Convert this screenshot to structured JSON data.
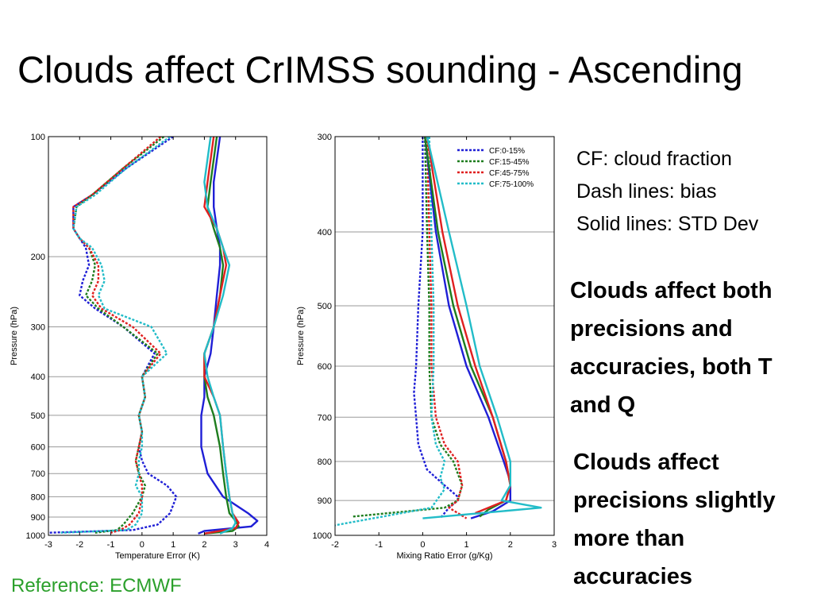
{
  "slide": {
    "title": "Clouds affect CrIMSS sounding - Ascending",
    "notes": [
      "CF: cloud fraction",
      "Dash lines: bias",
      "Solid lines: STD Dev"
    ],
    "point1": [
      "Clouds affect both",
      "precisions and",
      "accuracies, both T",
      "and Q"
    ],
    "point2": [
      "Clouds affect",
      "precisions slightly",
      "more than",
      "accuracies"
    ],
    "reference": "Reference: ECMWF",
    "reference_color": "#2ba02b"
  },
  "colors": {
    "cf_0_15": "#1f1fd6",
    "cf_15_45": "#1e7d1e",
    "cf_45_75": "#e02020",
    "cf_75_100": "#22bcc8"
  },
  "chart_data": [
    {
      "type": "line",
      "xlabel": "Temperature Error (K)",
      "ylabel": "Pressure (hPa)",
      "xlim": [
        -3,
        4
      ],
      "ylim": [
        100,
        1000
      ],
      "yscale": "log",
      "xticks": [
        -3,
        -2,
        -1,
        0,
        1,
        2,
        3,
        4
      ],
      "yticks": [
        100,
        200,
        300,
        400,
        500,
        600,
        700,
        800,
        900,
        1000
      ],
      "grid": "horizontal",
      "series": [
        {
          "kind": "bias",
          "color": "#1f1fd6",
          "x": [
            1.0,
            -0.5,
            -1.6,
            -2.2,
            -2.2,
            -2.0,
            -1.8,
            -1.7,
            -1.9,
            -2.0,
            -1.5,
            -0.6,
            0.4,
            0.0,
            0.1,
            -0.1,
            0.0,
            -0.1,
            0.0,
            0.2,
            0.8,
            1.1,
            0.9,
            0.5,
            -0.3,
            -3.0
          ],
          "y": [
            100,
            120,
            140,
            150,
            170,
            180,
            190,
            210,
            230,
            250,
            270,
            300,
            350,
            400,
            450,
            500,
            550,
            600,
            650,
            700,
            750,
            800,
            880,
            940,
            970,
            985
          ]
        },
        {
          "kind": "bias",
          "color": "#1e7d1e",
          "x": [
            0.7,
            -0.6,
            -1.6,
            -2.1,
            -2.2,
            -2.0,
            -1.7,
            -1.5,
            -1.6,
            -1.8,
            -1.4,
            -0.6,
            0.5,
            0.0,
            0.1,
            -0.1,
            0.0,
            -0.1,
            -0.2,
            -0.1,
            0.1,
            0.0,
            -0.3,
            -0.6,
            -0.8,
            -1.5
          ],
          "y": [
            100,
            120,
            140,
            150,
            170,
            180,
            190,
            210,
            230,
            250,
            270,
            300,
            350,
            400,
            450,
            500,
            550,
            600,
            650,
            700,
            750,
            800,
            880,
            940,
            970,
            985
          ]
        },
        {
          "kind": "bias",
          "color": "#e02020",
          "x": [
            0.6,
            -0.6,
            -1.6,
            -2.2,
            -2.2,
            -2.0,
            -1.7,
            -1.4,
            -1.4,
            -1.6,
            -1.3,
            -0.3,
            0.6,
            0.0,
            0.1,
            -0.1,
            0.0,
            -0.1,
            -0.2,
            -0.1,
            0.0,
            0.0,
            -0.1,
            -0.4,
            -0.7,
            -1.0
          ],
          "y": [
            100,
            120,
            140,
            150,
            170,
            180,
            190,
            210,
            230,
            250,
            270,
            300,
            350,
            400,
            450,
            500,
            550,
            600,
            650,
            700,
            750,
            800,
            880,
            940,
            970,
            985
          ]
        },
        {
          "kind": "bias",
          "color": "#22bcc8",
          "x": [
            0.9,
            -0.5,
            -1.5,
            -2.1,
            -2.2,
            -2.0,
            -1.6,
            -1.3,
            -1.2,
            -1.4,
            -1.2,
            0.3,
            0.8,
            0.0,
            0.1,
            -0.1,
            0.0,
            0.0,
            -0.1,
            -0.1,
            -0.2,
            0.0,
            0.0,
            -0.2,
            -0.5,
            -2.6
          ],
          "y": [
            100,
            120,
            140,
            150,
            170,
            180,
            190,
            210,
            230,
            250,
            270,
            300,
            350,
            400,
            450,
            500,
            550,
            600,
            650,
            700,
            750,
            800,
            880,
            940,
            970,
            985
          ]
        },
        {
          "kind": "std",
          "color": "#1f1fd6",
          "x": [
            2.5,
            2.3,
            2.3,
            2.4,
            2.5,
            2.5,
            2.4,
            2.3,
            2.2,
            2.0,
            2.0,
            1.9,
            1.9,
            1.9,
            2.1,
            2.6,
            3.4,
            3.7,
            3.5,
            2.0,
            1.8
          ],
          "y": [
            100,
            130,
            150,
            170,
            190,
            210,
            250,
            300,
            350,
            400,
            450,
            500,
            550,
            600,
            700,
            800,
            880,
            920,
            950,
            975,
            990
          ]
        },
        {
          "kind": "std",
          "color": "#1e7d1e",
          "x": [
            2.4,
            2.2,
            2.1,
            2.3,
            2.5,
            2.6,
            2.5,
            2.3,
            2.0,
            2.0,
            2.1,
            2.3,
            2.5,
            2.6,
            2.7,
            2.8,
            3.0,
            3.1,
            2.9,
            2.0
          ],
          "y": [
            100,
            130,
            150,
            170,
            190,
            210,
            250,
            300,
            350,
            400,
            450,
            500,
            600,
            700,
            800,
            880,
            920,
            950,
            975,
            990
          ]
        },
        {
          "kind": "std",
          "color": "#e02020",
          "x": [
            2.3,
            2.1,
            2.0,
            2.4,
            2.6,
            2.7,
            2.5,
            2.3,
            2.0,
            2.0,
            2.3,
            2.5,
            2.6,
            2.7,
            2.8,
            2.9,
            3.1,
            3.0,
            2.0
          ],
          "y": [
            100,
            130,
            150,
            170,
            190,
            210,
            250,
            300,
            350,
            400,
            450,
            500,
            600,
            700,
            800,
            880,
            930,
            960,
            990
          ]
        },
        {
          "kind": "std",
          "color": "#22bcc8",
          "x": [
            2.2,
            2.0,
            2.1,
            2.4,
            2.6,
            2.8,
            2.6,
            2.3,
            2.0,
            2.1,
            2.3,
            2.5,
            2.6,
            2.7,
            2.8,
            2.9,
            3.0,
            2.9,
            2.5
          ],
          "y": [
            100,
            130,
            150,
            170,
            190,
            210,
            250,
            300,
            350,
            400,
            450,
            500,
            600,
            700,
            800,
            880,
            930,
            960,
            990
          ]
        }
      ]
    },
    {
      "type": "line",
      "xlabel": "Mixing Ratio Error (g/Kg)",
      "ylabel": "Pressure (hPa)",
      "xlim": [
        -2,
        3
      ],
      "ylim": [
        300,
        1000
      ],
      "yscale": "log",
      "xticks": [
        -2,
        -1,
        0,
        1,
        2,
        3
      ],
      "yticks": [
        300,
        400,
        500,
        600,
        700,
        800,
        900,
        1000
      ],
      "grid": "horizontal",
      "legend": {
        "placement": "top-right",
        "entries": [
          {
            "label": "CF:0-15%",
            "color": "#1f1fd6"
          },
          {
            "label": "CF:15-45%",
            "color": "#1e7d1e"
          },
          {
            "label": "CF:45-75%",
            "color": "#e02020"
          },
          {
            "label": "CF:75-100%",
            "color": "#22bcc8"
          }
        ]
      },
      "series": [
        {
          "name": "CF:0-15%",
          "kind": "bias",
          "color": "#1f1fd6",
          "x": [
            0.0,
            0.0,
            -0.1,
            -0.15,
            -0.2,
            -0.15,
            -0.1,
            0.1,
            0.5,
            0.8,
            0.8,
            0.6,
            0.4
          ],
          "y": [
            300,
            400,
            500,
            600,
            650,
            700,
            760,
            820,
            860,
            890,
            900,
            920,
            950
          ]
        },
        {
          "name": "CF:15-45%",
          "kind": "bias",
          "color": "#1e7d1e",
          "x": [
            0.05,
            0.1,
            0.15,
            0.15,
            0.2,
            0.4,
            0.7,
            0.9,
            0.8,
            0.5,
            -1.6
          ],
          "y": [
            300,
            400,
            500,
            600,
            700,
            760,
            800,
            860,
            900,
            920,
            945
          ]
        },
        {
          "name": "CF:45-75%",
          "kind": "bias",
          "color": "#e02020",
          "x": [
            0.1,
            0.15,
            0.2,
            0.2,
            0.3,
            0.5,
            0.8,
            0.9,
            0.8,
            0.6,
            1.0
          ],
          "y": [
            300,
            400,
            500,
            600,
            700,
            760,
            800,
            860,
            900,
            920,
            950
          ]
        },
        {
          "name": "CF:75-100%",
          "kind": "bias",
          "color": "#22bcc8",
          "x": [
            0.15,
            0.2,
            0.25,
            0.25,
            0.2,
            0.3,
            0.5,
            0.4,
            0.5,
            0.2,
            -2.0
          ],
          "y": [
            300,
            400,
            500,
            600,
            700,
            760,
            800,
            840,
            870,
            920,
            970
          ]
        },
        {
          "name": "CF:0-15%",
          "kind": "std",
          "color": "#1f1fd6",
          "x": [
            0.05,
            0.3,
            0.6,
            1.0,
            1.5,
            1.85,
            2.0,
            2.0,
            1.6,
            1.1
          ],
          "y": [
            300,
            400,
            500,
            600,
            700,
            800,
            850,
            900,
            930,
            950
          ]
        },
        {
          "name": "CF:15-45%",
          "kind": "std",
          "color": "#1e7d1e",
          "x": [
            0.05,
            0.35,
            0.7,
            1.1,
            1.6,
            1.9,
            2.0,
            1.9,
            1.5,
            1.3
          ],
          "y": [
            300,
            400,
            500,
            600,
            700,
            800,
            860,
            900,
            925,
            945
          ]
        },
        {
          "name": "CF:45-75%",
          "kind": "std",
          "color": "#e02020",
          "x": [
            0.1,
            0.45,
            0.8,
            1.2,
            1.6,
            1.9,
            2.0,
            1.9,
            1.5,
            1.2
          ],
          "y": [
            300,
            400,
            500,
            600,
            700,
            800,
            860,
            900,
            920,
            935
          ]
        },
        {
          "name": "CF:75-100%",
          "kind": "std",
          "color": "#22bcc8",
          "x": [
            0.1,
            0.6,
            1.0,
            1.3,
            1.7,
            2.0,
            2.0,
            1.8,
            2.7,
            0.0
          ],
          "y": [
            300,
            400,
            500,
            600,
            700,
            800,
            860,
            900,
            920,
            950
          ]
        }
      ]
    }
  ]
}
